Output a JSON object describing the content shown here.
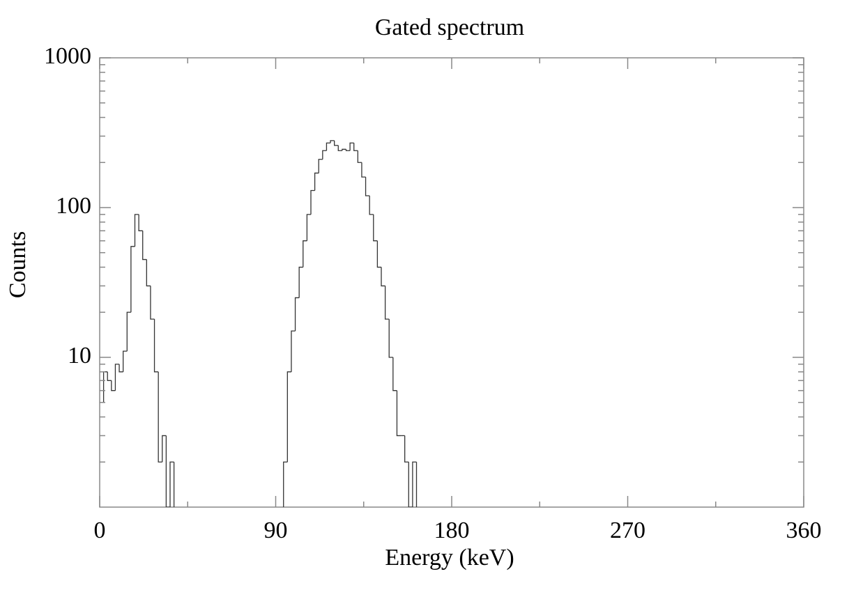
{
  "chart_data": {
    "type": "histogram",
    "title": "Gated spectrum",
    "x_label": "Energy (keV)",
    "y_label": "Counts",
    "bins": [
      0,
      2,
      4,
      6,
      8,
      10,
      12,
      14,
      16,
      18,
      20,
      22,
      24,
      26,
      28,
      30,
      32,
      34,
      36,
      38,
      40,
      42,
      44,
      46,
      48,
      50,
      52,
      54,
      56,
      58,
      60,
      62,
      64,
      66,
      68,
      70,
      72,
      74,
      76,
      78,
      80,
      82,
      84,
      86,
      88,
      90,
      92,
      94,
      96,
      98,
      100,
      102,
      104,
      106,
      108,
      110,
      112,
      114,
      116,
      118,
      120,
      122,
      124,
      126,
      128,
      130,
      132,
      134,
      136,
      138,
      140,
      142,
      144,
      146,
      148,
      150,
      152,
      154,
      156,
      158,
      160,
      162,
      164,
      166
    ],
    "counts": [
      5,
      8,
      7,
      6,
      9,
      8,
      11,
      20,
      55,
      90,
      70,
      45,
      30,
      18,
      8,
      2,
      3,
      1,
      2,
      0,
      0,
      0,
      0,
      0,
      0,
      0,
      0,
      0,
      0,
      0,
      0,
      0,
      0,
      0,
      0,
      0,
      0,
      0,
      0,
      0,
      0,
      0,
      0,
      0,
      0,
      0,
      0,
      2,
      8,
      15,
      25,
      40,
      60,
      90,
      130,
      170,
      210,
      240,
      270,
      280,
      260,
      240,
      245,
      240,
      270,
      240,
      200,
      160,
      120,
      90,
      60,
      40,
      30,
      18,
      10,
      6,
      3,
      3,
      2,
      1,
      2,
      0,
      0
    ],
    "color": "#333333",
    "xlim": [
      0,
      360
    ],
    "xticks": [
      0,
      90,
      180,
      270,
      360
    ],
    "xminorticks": [
      45,
      135,
      225,
      315
    ],
    "ylim": [
      1,
      1000
    ],
    "yticks": [
      10,
      100,
      1000
    ],
    "log_y": true
  }
}
